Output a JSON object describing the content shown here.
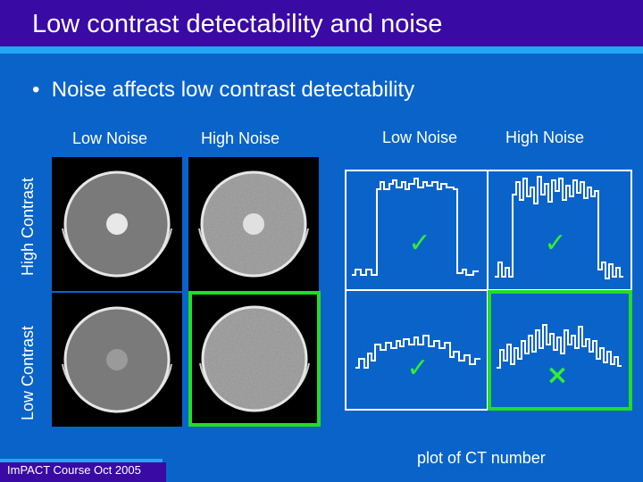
{
  "slide": {
    "title": "Low contrast detectability and noise",
    "bullet_marker": "•",
    "bullet_text": "Noise affects low contrast detectability",
    "images": {
      "col_low_noise": "Low Noise",
      "col_high_noise": "High Noise",
      "row_high_contrast": "High Contrast",
      "row_low_contrast": "Low Contrast"
    },
    "plots": {
      "col_low_noise": "Low Noise",
      "col_high_noise": "High Noise",
      "marks": [
        "✓",
        "✓",
        "✓",
        "×"
      ],
      "caption": "plot of CT number"
    },
    "footer": "ImPACT Course Oct 2005"
  },
  "colors": {
    "background": "#0a63c9",
    "title_bar": "#3a0aa4",
    "accent_stripe": "#23a7f2",
    "highlight_green": "#22dd22",
    "check_green": "#33ee33"
  }
}
